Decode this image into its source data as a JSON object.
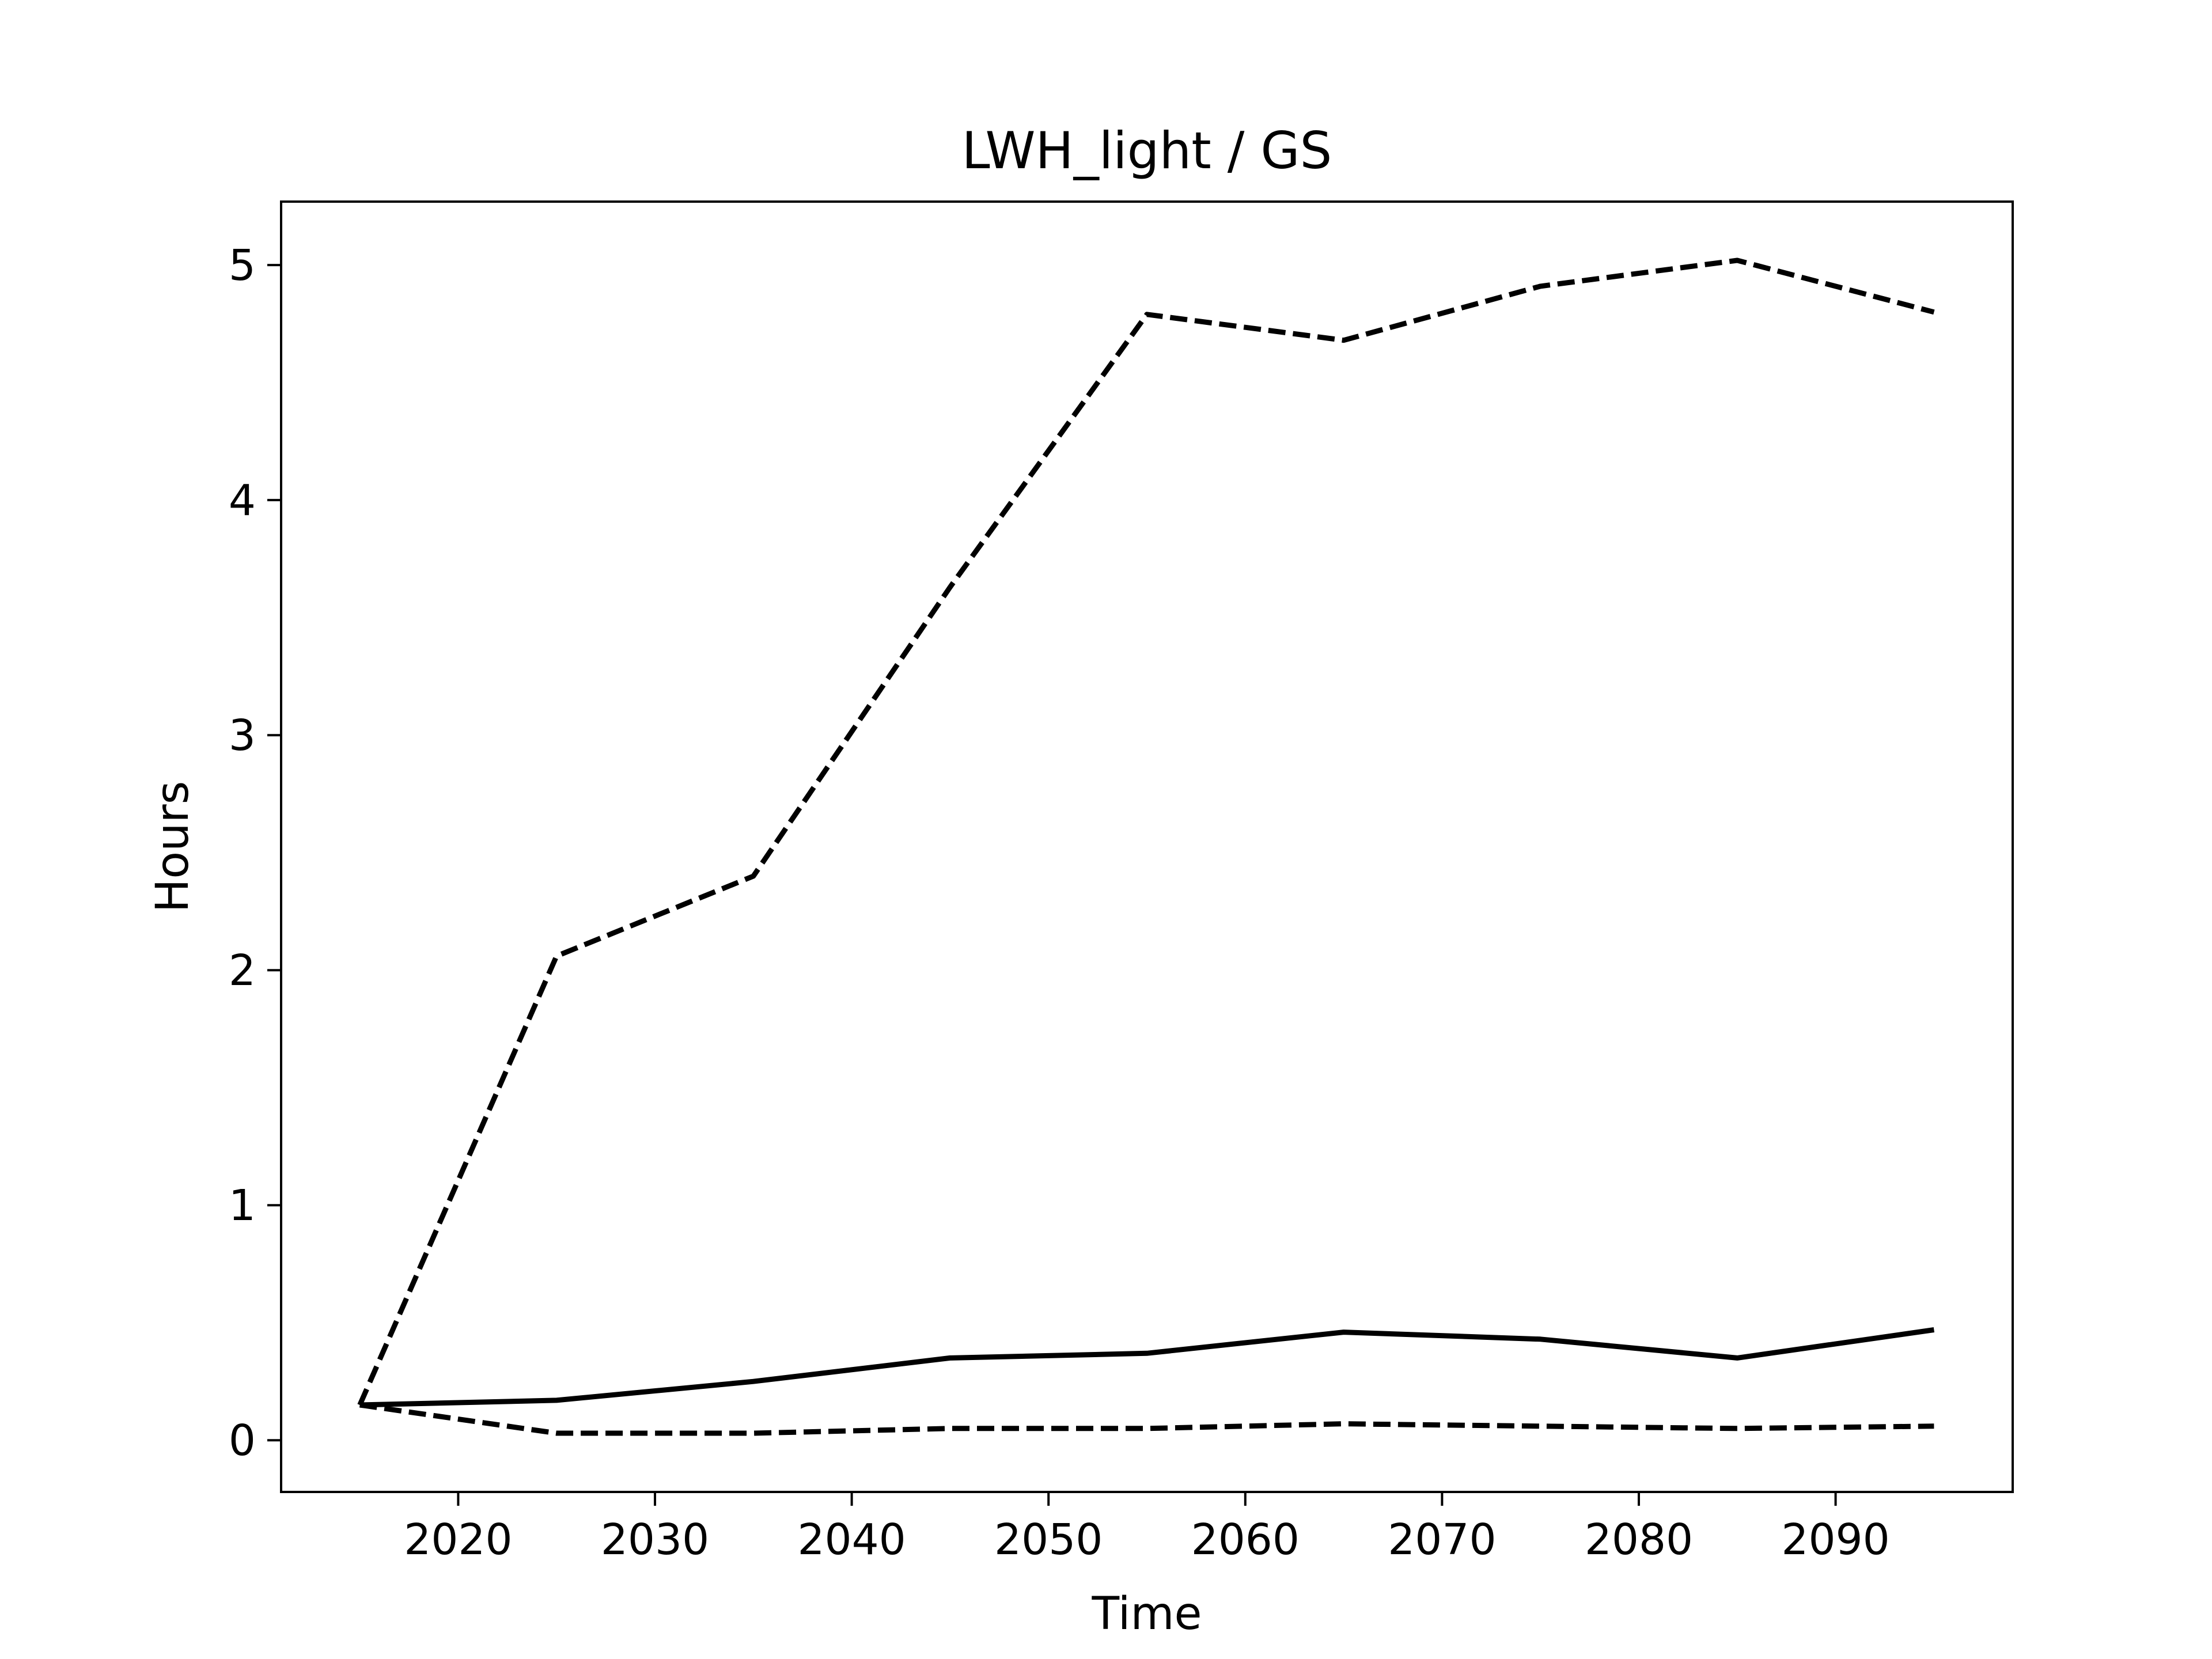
{
  "chart_data": {
    "type": "line",
    "title": "LWH_light / GS",
    "xlabel": "Time",
    "ylabel": "Hours",
    "xlim": [
      2011,
      2099
    ],
    "ylim": [
      -0.22,
      5.27
    ],
    "xticks": [
      2020,
      2030,
      2040,
      2050,
      2060,
      2070,
      2080,
      2090
    ],
    "yticks": [
      0,
      1,
      2,
      3,
      4,
      5
    ],
    "grid": false,
    "x": [
      2015,
      2025,
      2035,
      2045,
      2055,
      2065,
      2075,
      2085,
      2095
    ],
    "series": [
      {
        "style": "dashed",
        "color": "#000000",
        "values": [
          0.15,
          2.06,
          2.4,
          3.63,
          4.79,
          4.68,
          4.91,
          5.02,
          4.8
        ]
      },
      {
        "style": "solid",
        "color": "#000000",
        "values": [
          0.15,
          0.17,
          0.25,
          0.35,
          0.37,
          0.46,
          0.43,
          0.35,
          0.47
        ]
      },
      {
        "style": "dashed",
        "color": "#000000",
        "values": [
          0.15,
          0.03,
          0.03,
          0.05,
          0.05,
          0.07,
          0.06,
          0.05,
          0.06
        ]
      }
    ]
  }
}
